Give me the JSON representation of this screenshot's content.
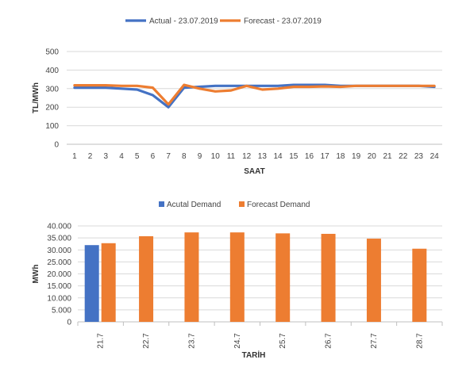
{
  "chart_data": [
    {
      "type": "line",
      "title": "",
      "xlabel": "SAAT",
      "ylabel": "TL/MWh",
      "ylim": [
        0,
        500
      ],
      "yticks": [
        "0",
        "100",
        "200",
        "300",
        "400",
        "500"
      ],
      "grid": true,
      "legend_position": "top",
      "categories": [
        "1",
        "2",
        "3",
        "4",
        "5",
        "6",
        "7",
        "8",
        "9",
        "10",
        "11",
        "12",
        "13",
        "14",
        "15",
        "16",
        "17",
        "18",
        "19",
        "20",
        "21",
        "22",
        "23",
        "24"
      ],
      "series": [
        {
          "name": "Actual - 23.07.2019",
          "color": "#4472C4",
          "values": [
            305,
            305,
            305,
            300,
            295,
            265,
            200,
            305,
            310,
            315,
            315,
            315,
            315,
            315,
            320,
            320,
            320,
            315,
            315,
            315,
            315,
            315,
            315,
            310
          ]
        },
        {
          "name": "Forecast - 23.07.2019",
          "color": "#ED7D31",
          "values": [
            318,
            318,
            318,
            315,
            315,
            305,
            215,
            320,
            300,
            285,
            290,
            315,
            295,
            300,
            310,
            310,
            312,
            310,
            315,
            315,
            315,
            315,
            315,
            315
          ]
        }
      ]
    },
    {
      "type": "bar",
      "title": "",
      "xlabel": "TARİH",
      "ylabel": "MWh",
      "ylim": [
        0,
        40000
      ],
      "yticks": [
        "0",
        "5.000",
        "10.000",
        "15.000",
        "20.000",
        "25.000",
        "30.000",
        "35.000",
        "40.000"
      ],
      "grid": true,
      "legend_position": "top",
      "categories": [
        "21.7",
        "22.7",
        "23.7",
        "24.7",
        "25.7",
        "26.7",
        "27.7",
        "28.7"
      ],
      "series": [
        {
          "name": "Acutal Demand",
          "color": "#4472C4",
          "values": [
            32000,
            null,
            null,
            null,
            null,
            null,
            null,
            null
          ]
        },
        {
          "name": "Forecast Demand",
          "color": "#ED7D31",
          "values": [
            32800,
            35700,
            37300,
            37300,
            36900,
            36700,
            34700,
            30500
          ]
        }
      ]
    }
  ]
}
